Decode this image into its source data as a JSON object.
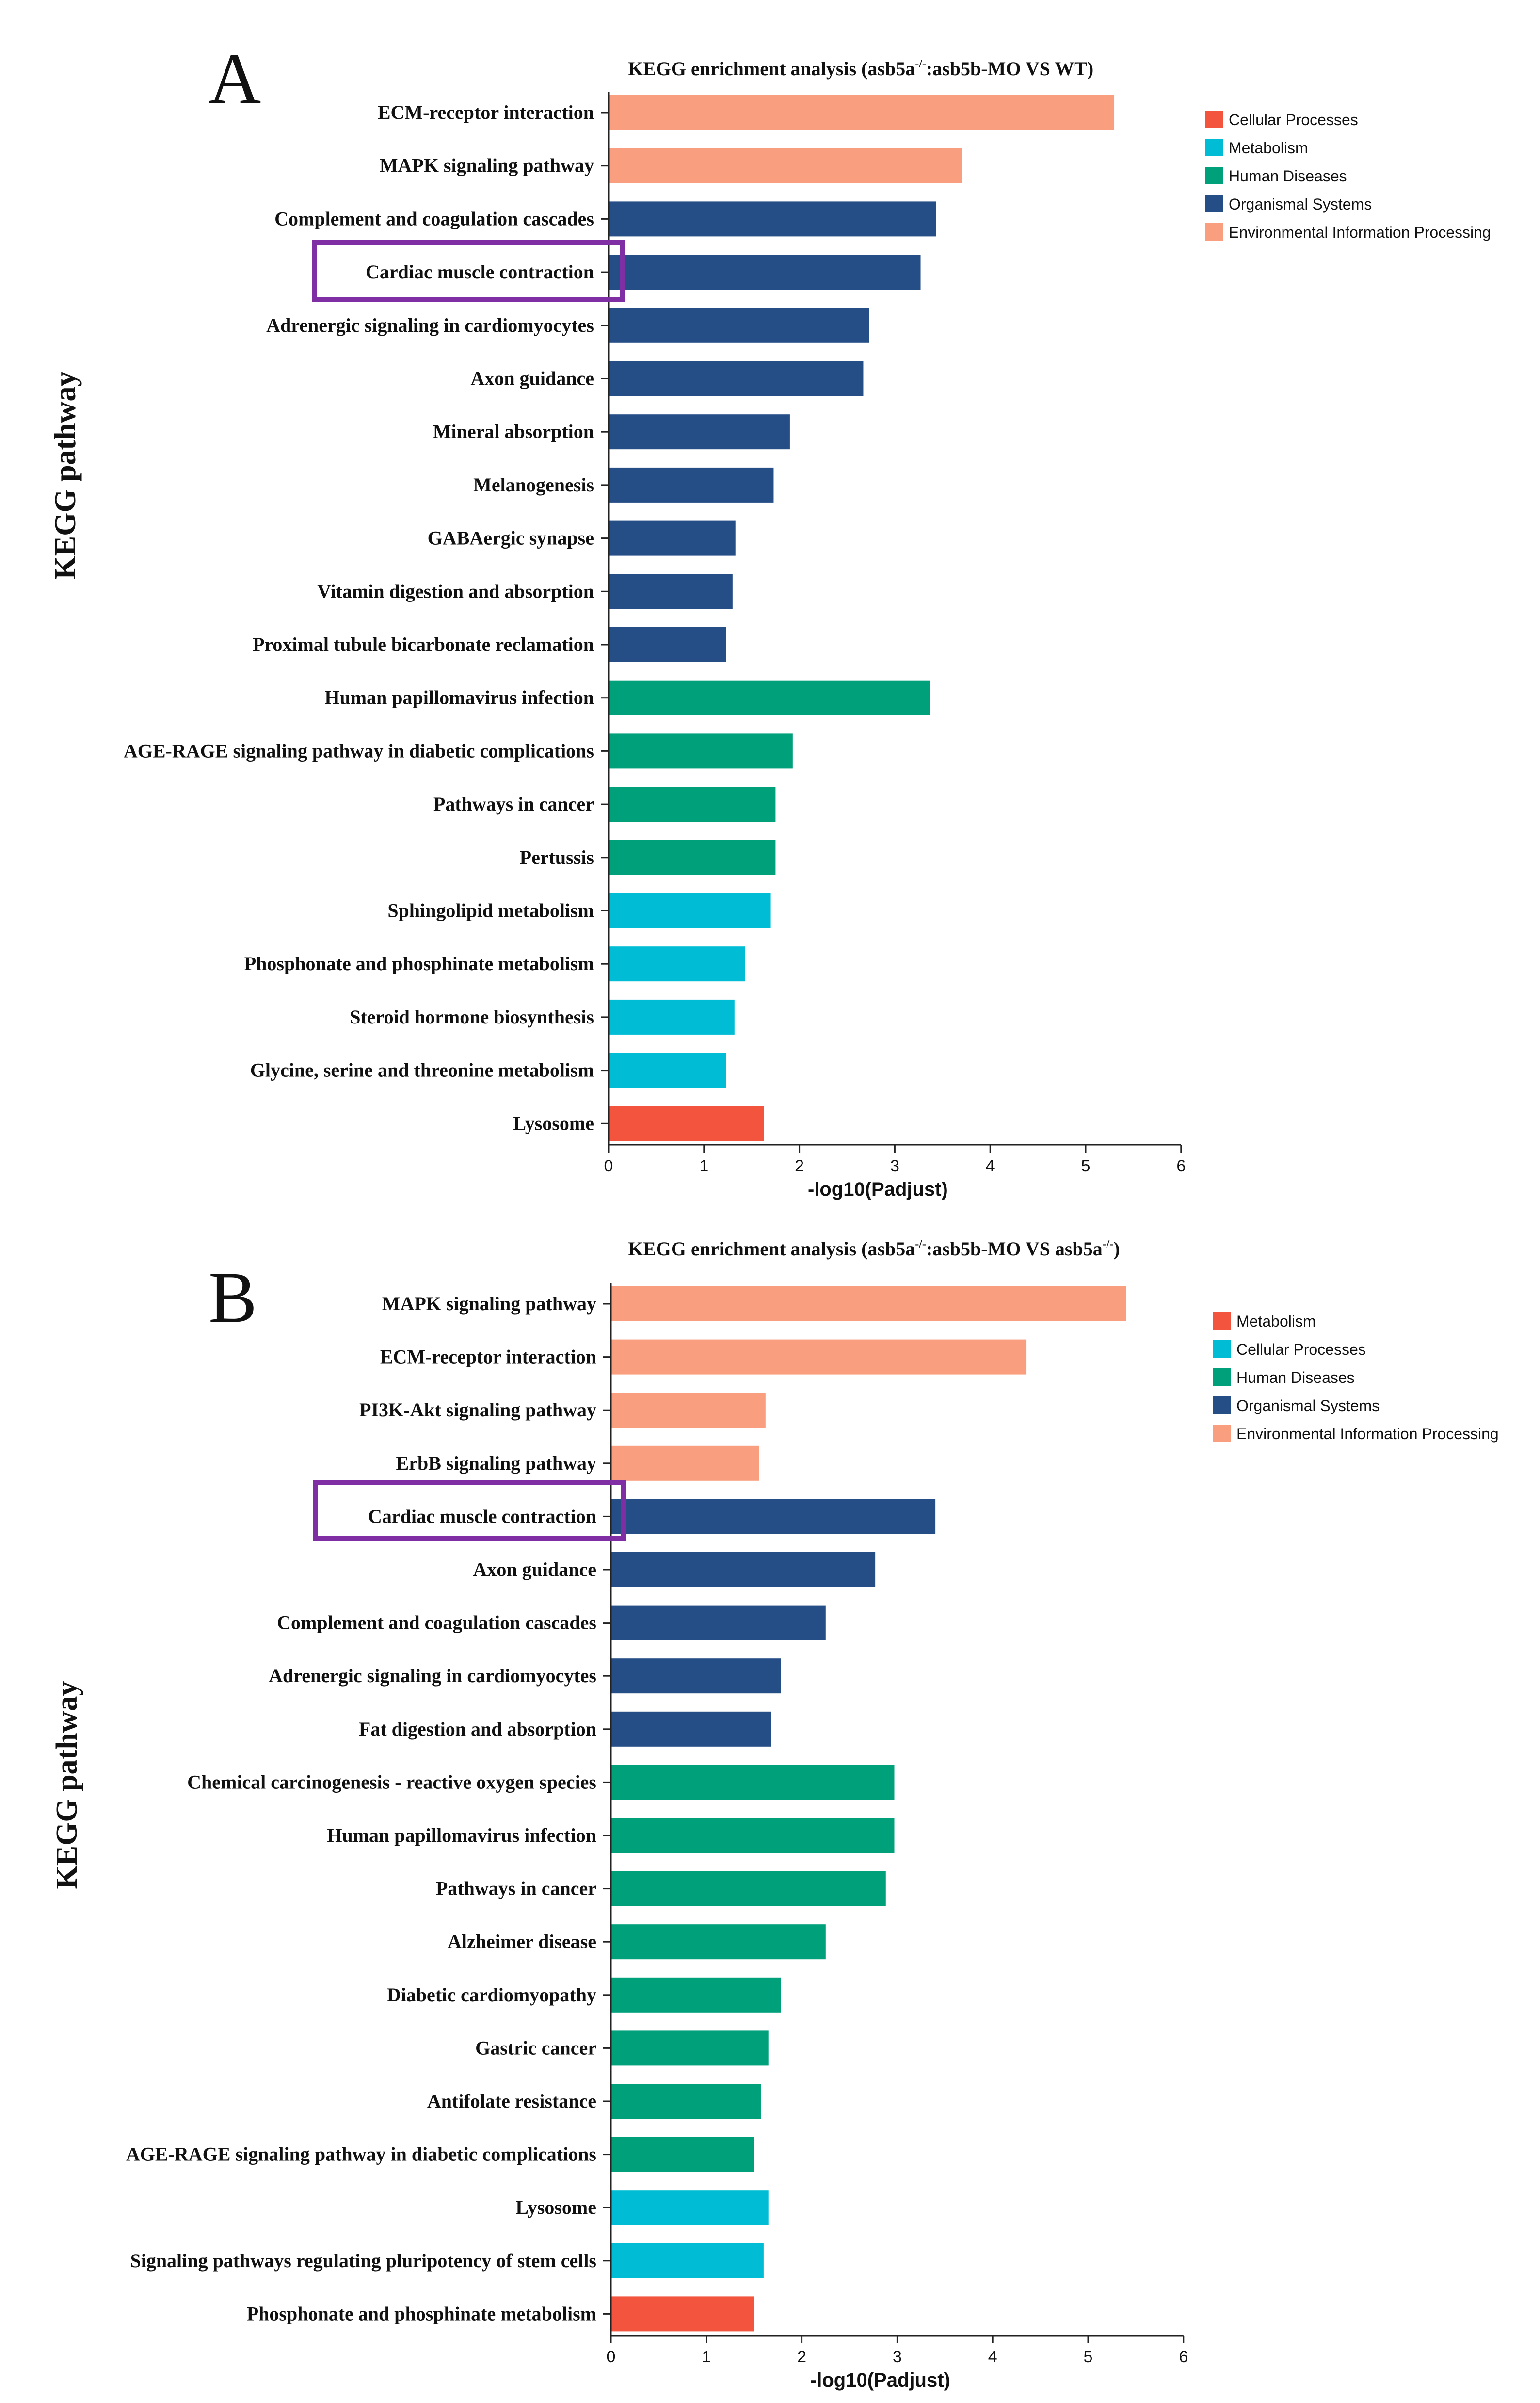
{
  "colors": {
    "Cellular Processes": "#f2543d",
    "Metabolism": "#00bcd4",
    "Human Diseases": "#00a07a",
    "Organismal Systems": "#264e86",
    "Environmental Information Processing": "#f99f80",
    "highlight_box": "#7f2fa3"
  },
  "chart_data": [
    {
      "type": "bar",
      "panel_label": "A",
      "title_main": "KEGG enrichment analysis  (asb5a",
      "title_sup": "-/-",
      "title_rest": ":asb5b-MO VS WT)",
      "xlabel": "-log10(Padjust)",
      "ylabel": "KEGG pathway",
      "xlim": [
        0,
        6
      ],
      "xticks": [
        "0",
        "1",
        "2",
        "3",
        "4",
        "5",
        "6"
      ],
      "legend_position": "top-right",
      "legend": [
        "Cellular Processes",
        "Metabolism",
        "Human Diseases",
        "Organismal Systems",
        "Environmental Information Processing"
      ],
      "highlighted": "Cardiac muscle contraction",
      "categories": [
        "ECM-receptor interaction",
        "MAPK signaling pathway",
        "Complement and coagulation cascades",
        "Cardiac muscle contraction",
        "Adrenergic signaling in cardiomyocytes",
        "Axon guidance",
        "Mineral absorption",
        "Melanogenesis",
        "GABAergic synapse",
        "Vitamin digestion and absorption",
        "Proximal tubule bicarbonate reclamation",
        "Human papillomavirus infection",
        "AGE-RAGE signaling pathway in diabetic complications",
        "Pathways in cancer",
        "Pertussis",
        "Sphingolipid metabolism",
        "Phosphonate and phosphinate metabolism",
        "Steroid hormone biosynthesis",
        "Glycine, serine and threonine metabolism",
        "Lysosome"
      ],
      "values": [
        5.3,
        3.7,
        3.43,
        3.27,
        2.73,
        2.67,
        1.9,
        1.73,
        1.33,
        1.3,
        1.23,
        3.37,
        1.93,
        1.75,
        1.75,
        1.7,
        1.43,
        1.32,
        1.23,
        1.63
      ],
      "groups": [
        "Environmental Information Processing",
        "Environmental Information Processing",
        "Organismal Systems",
        "Organismal Systems",
        "Organismal Systems",
        "Organismal Systems",
        "Organismal Systems",
        "Organismal Systems",
        "Organismal Systems",
        "Organismal Systems",
        "Organismal Systems",
        "Human Diseases",
        "Human Diseases",
        "Human Diseases",
        "Human Diseases",
        "Metabolism",
        "Metabolism",
        "Metabolism",
        "Metabolism",
        "Cellular Processes"
      ]
    },
    {
      "type": "bar",
      "panel_label": "B",
      "title_main": "KEGG enrichment analysis  (asb5a",
      "title_sup": "-/-",
      "title_rest": ":asb5b-MO VS asb5a",
      "title_sup2": "-/-",
      "title_end": ")",
      "xlabel": "-log10(Padjust)",
      "ylabel": "KEGG pathway",
      "xlim": [
        0,
        6
      ],
      "xticks": [
        "0",
        "1",
        "2",
        "3",
        "4",
        "5",
        "6"
      ],
      "legend_position": "top-right",
      "legend": [
        "Metabolism",
        "Cellular Processes",
        "Human Diseases",
        "Organismal Systems",
        "Environmental Information Processing"
      ],
      "highlighted": "Cardiac muscle contraction",
      "categories": [
        "MAPK signaling pathway",
        "ECM-receptor interaction",
        "PI3K-Akt signaling pathway",
        "ErbB signaling pathway",
        "Cardiac muscle contraction",
        "Axon guidance",
        "Complement and coagulation cascades",
        "Adrenergic signaling in cardiomyocytes",
        "Fat digestion and absorption",
        "Chemical carcinogenesis - reactive oxygen species",
        "Human papillomavirus infection",
        "Pathways in cancer",
        "Alzheimer disease",
        "Diabetic cardiomyopathy",
        "Gastric cancer",
        "Antifolate resistance",
        "AGE-RAGE signaling pathway in diabetic complications",
        "Lysosome",
        "Signaling pathways regulating pluripotency of stem cells",
        "Phosphonate and phosphinate metabolism"
      ],
      "values": [
        5.4,
        4.35,
        1.62,
        1.55,
        3.4,
        2.77,
        2.25,
        1.78,
        1.68,
        2.97,
        2.97,
        2.88,
        2.25,
        1.78,
        1.65,
        1.57,
        1.5,
        1.65,
        1.6,
        1.5
      ],
      "groups": [
        "Environmental Information Processing",
        "Environmental Information Processing",
        "Environmental Information Processing",
        "Environmental Information Processing",
        "Organismal Systems",
        "Organismal Systems",
        "Organismal Systems",
        "Organismal Systems",
        "Organismal Systems",
        "Human Diseases",
        "Human Diseases",
        "Human Diseases",
        "Human Diseases",
        "Human Diseases",
        "Human Diseases",
        "Human Diseases",
        "Human Diseases",
        "Cellular Processes",
        "Cellular Processes",
        "Metabolism"
      ],
      "group_colors": {
        "Metabolism": "#f2543d",
        "Cellular Processes": "#00bcd4",
        "Human Diseases": "#00a07a",
        "Organismal Systems": "#264e86",
        "Environmental Information Processing": "#f99f80"
      }
    }
  ]
}
